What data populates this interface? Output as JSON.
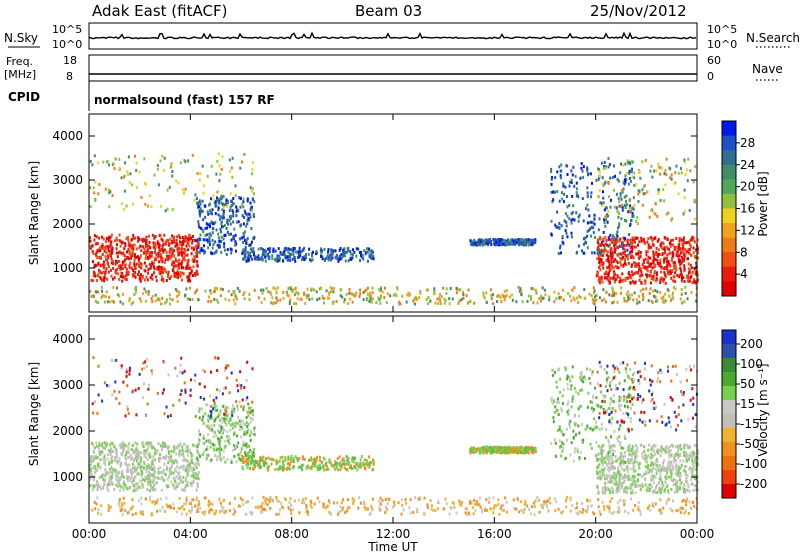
{
  "header": {
    "station": "Adak East (fitACF)",
    "beam": "Beam 03",
    "date": "25/Nov/2012"
  },
  "panels": {
    "nsky": {
      "left_label": "N.Sky",
      "left_ticks": [
        "10^5",
        "10^0"
      ],
      "right_ticks": [
        "10^5",
        "10^0"
      ],
      "right_label": "N.Search"
    },
    "freq": {
      "left_label_1": "Freq.",
      "left_label_2": "[MHz]",
      "left_ticks": [
        "18",
        "8"
      ],
      "right_ticks": [
        "60",
        "0"
      ],
      "right_label": "Nave"
    },
    "cpid": {
      "label": "CPID",
      "text": "normalsound (fast) 157 RF"
    }
  },
  "chart_data": [
    {
      "type": "heatmap",
      "ylabel": "Slant Range [km]",
      "yticks": [
        "1000",
        "2000",
        "3000",
        "4000"
      ],
      "ylim": [
        0,
        4500
      ],
      "colorbar": {
        "label": "Power [dB]",
        "ticks": [
          "4",
          "8",
          "12",
          "16",
          "20",
          "24",
          "28"
        ],
        "colors": [
          "#0018e8",
          "#1e4fc8",
          "#2f6e8e",
          "#3f8c6a",
          "#4fa858",
          "#8fc23c",
          "#f0d020",
          "#f2a21e",
          "#f07a18",
          "#f04e14",
          "#e81c10",
          "#e00000"
        ]
      }
    },
    {
      "type": "heatmap",
      "ylabel": "Slant Range [km]",
      "yticks": [
        "1000",
        "2000",
        "3000",
        "4000"
      ],
      "ylim": [
        0,
        4500
      ],
      "xlabel": "Time UT",
      "xticks": [
        "00:00",
        "04:00",
        "08:00",
        "12:00",
        "16:00",
        "20:00",
        "00:00"
      ],
      "colorbar": {
        "label": "Velocity [m s⁻¹]",
        "ticks": [
          "200",
          "100",
          "50",
          "15",
          "-15",
          "-50",
          "-100",
          "-200"
        ],
        "colors": [
          "#1a32c8",
          "#2b4fb0",
          "#3a8a3a",
          "#4aaa30",
          "#78d050",
          "#c8c8c0",
          "#c0c0b8",
          "#f0b030",
          "#f09020",
          "#f07010",
          "#f04010",
          "#e00000"
        ]
      }
    }
  ]
}
